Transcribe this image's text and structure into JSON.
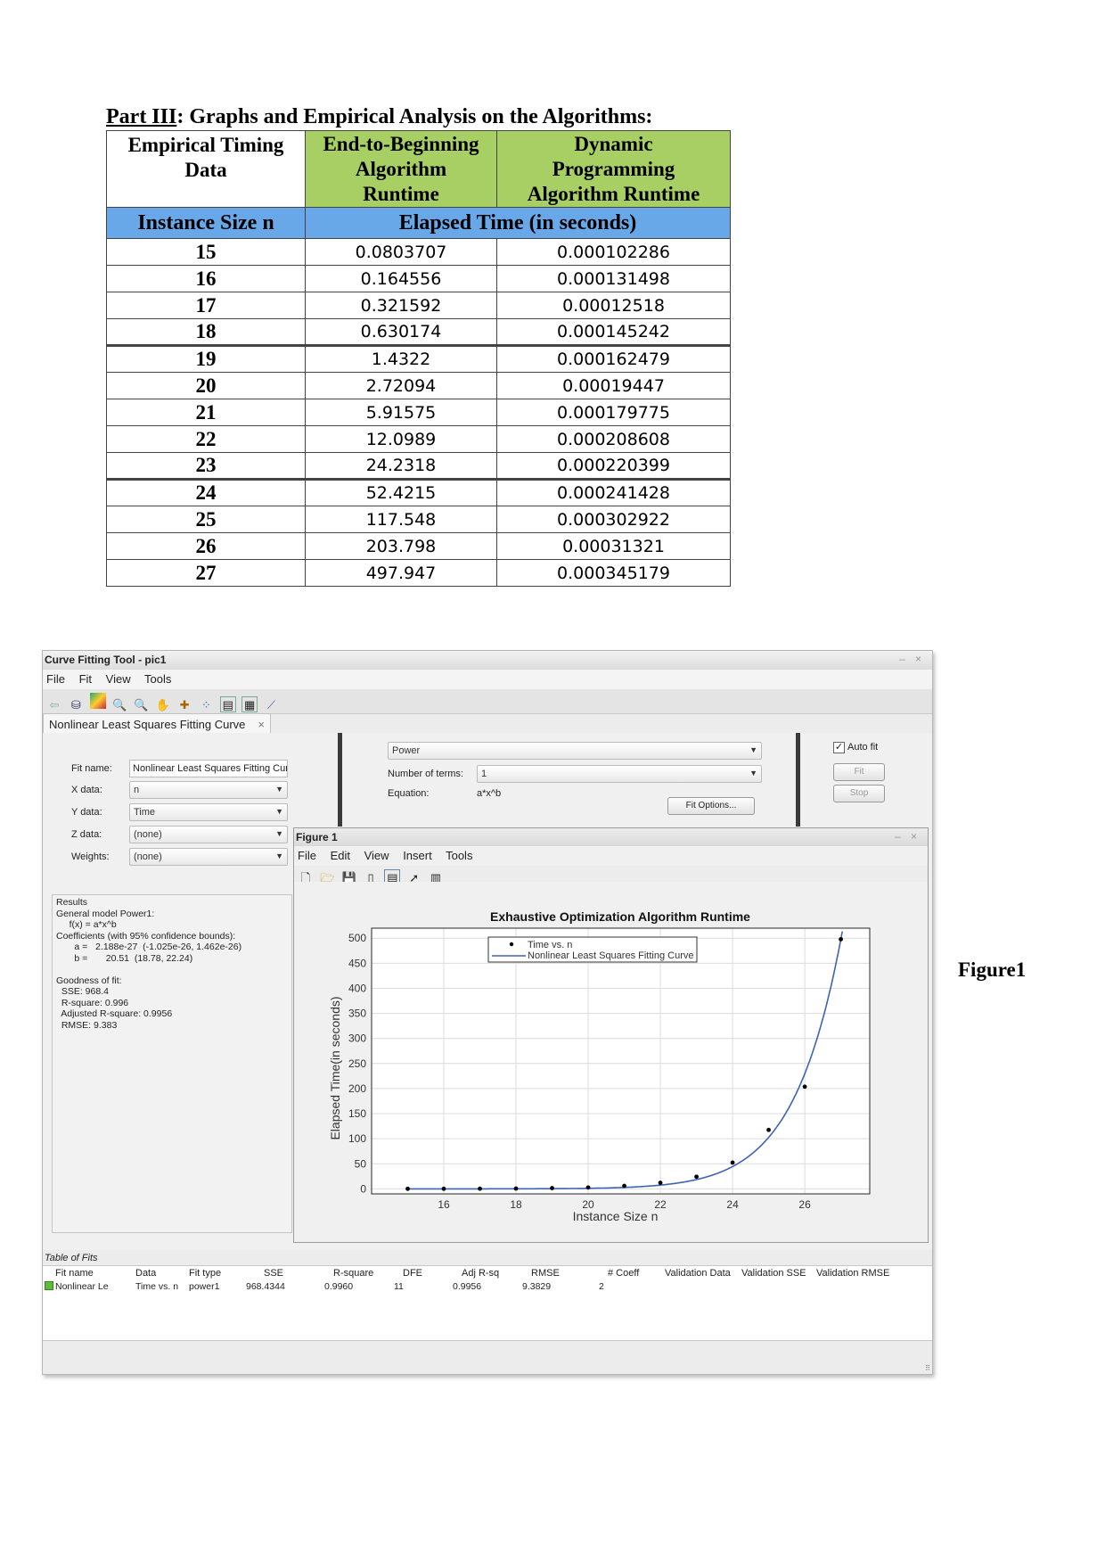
{
  "document": {
    "heading_underlined": "Part III",
    "heading_rest": ": Graphs and Empirical Analysis on the Algorithms:",
    "table": {
      "col1_header_l1": "Empirical Timing",
      "col1_header_l2": "Data",
      "col2_header_l1": "End-to-Beginning",
      "col2_header_l2": "Algorithm",
      "col2_header_l3": "Runtime",
      "col3_header_l1": "Dynamic",
      "col3_header_l2": "Programming",
      "col3_header_l3": "Algorithm Runtime",
      "sub_header_left": "Instance Size n",
      "sub_header_right": "Elapsed Time (in seconds)",
      "rows": [
        {
          "n": "15",
          "e2b": "0.0803707",
          "dp": "0.000102286"
        },
        {
          "n": "16",
          "e2b": "0.164556",
          "dp": "0.000131498"
        },
        {
          "n": "17",
          "e2b": "0.321592",
          "dp": "0.00012518"
        },
        {
          "n": "18",
          "e2b": "0.630174",
          "dp": "0.000145242"
        },
        {
          "n": "19",
          "e2b": "1.4322",
          "dp": "0.000162479"
        },
        {
          "n": "20",
          "e2b": "2.72094",
          "dp": "0.00019447"
        },
        {
          "n": "21",
          "e2b": "5.91575",
          "dp": "0.000179775"
        },
        {
          "n": "22",
          "e2b": "12.0989",
          "dp": "0.000208608"
        },
        {
          "n": "23",
          "e2b": "24.2318",
          "dp": "0.000220399"
        },
        {
          "n": "24",
          "e2b": "52.4215",
          "dp": "0.000241428"
        },
        {
          "n": "25",
          "e2b": "117.548",
          "dp": "0.000302922"
        },
        {
          "n": "26",
          "e2b": "203.798",
          "dp": "0.00031321"
        },
        {
          "n": "27",
          "e2b": "497.947",
          "dp": "0.000345179"
        }
      ]
    },
    "figure_caption": "Figure1"
  },
  "cftool": {
    "title": "Curve Fitting Tool - pic1",
    "window_controls": "– ×",
    "menu": [
      "File",
      "Fit",
      "View",
      "Tools"
    ],
    "tab_label": "Nonlinear Least Squares Fitting Curve",
    "tab_close": "×",
    "fit_name_label": "Fit name:",
    "fit_name_value": "Nonlinear Least Squares Fitting Curve",
    "x_data_label": "X data:",
    "x_data_value": "n",
    "y_data_label": "Y data:",
    "y_data_value": "Time",
    "z_data_label": "Z data:",
    "z_data_value": "(none)",
    "weights_label": "Weights:",
    "weights_value": "(none)",
    "fit_type_value": "Power",
    "num_terms_label": "Number of terms:",
    "num_terms_value": "1",
    "equation_label": "Equation:",
    "equation_value": "a*x^b",
    "fit_options_button": "Fit Options...",
    "auto_fit_label": "Auto fit",
    "fit_button": "Fit",
    "stop_button": "Stop",
    "results": [
      "Results",
      "General model Power1:",
      "     f(x) = a*x^b",
      "Coefficients (with 95% confidence bounds):",
      "       a =   2.188e-27  (-1.025e-26, 1.462e-26)",
      "       b =       20.51  (18.78, 22.24)",
      "",
      "Goodness of fit:",
      "  SSE: 968.4",
      "  R-square: 0.996",
      "  Adjusted R-square: 0.9956",
      "  RMSE: 9.383"
    ],
    "table_of_fits": {
      "label": "Table of Fits",
      "headers": [
        "Fit name",
        "Data",
        "Fit type",
        "SSE",
        "R-square",
        "DFE",
        "Adj R-sq",
        "RMSE",
        "# Coeff",
        "Validation Data",
        "Validation SSE",
        "Validation RMSE"
      ],
      "row": [
        "Nonlinear Le",
        "Time vs. n",
        "power1",
        "968.4344",
        "0.9960",
        "11",
        "0.9956",
        "9.3829",
        "2",
        "",
        "",
        ""
      ]
    }
  },
  "figure": {
    "title": "Figure 1",
    "window_controls": "– ×",
    "menu": [
      "File",
      "Edit",
      "View",
      "Insert",
      "Tools"
    ]
  },
  "chart_data": {
    "type": "scatter",
    "title": "Exhaustive Optimization Algorithm Runtime",
    "xlabel": "Instance Size n",
    "ylabel": "Elapsed Time(in seconds)",
    "xlim": [
      14,
      27.8
    ],
    "ylim": [
      -10,
      520
    ],
    "x_ticks": [
      16,
      18,
      20,
      22,
      24,
      26
    ],
    "y_ticks": [
      0,
      50,
      100,
      150,
      200,
      250,
      300,
      350,
      400,
      450,
      500
    ],
    "grid": true,
    "legend_position": "top-center",
    "series": [
      {
        "name": "Time vs. n",
        "kind": "points",
        "color": "#000000",
        "x": [
          15,
          16,
          17,
          18,
          19,
          20,
          21,
          22,
          23,
          24,
          25,
          26,
          27
        ],
        "y": [
          0.0803707,
          0.164556,
          0.321592,
          0.630174,
          1.4322,
          2.72094,
          5.91575,
          12.0989,
          24.2318,
          52.4215,
          117.548,
          203.798,
          497.947
        ]
      },
      {
        "name": "Nonlinear Least Squares Fitting Curve",
        "kind": "curve",
        "color": "#3f63b4",
        "a": 2.188e-27,
        "b": 20.51
      }
    ]
  }
}
